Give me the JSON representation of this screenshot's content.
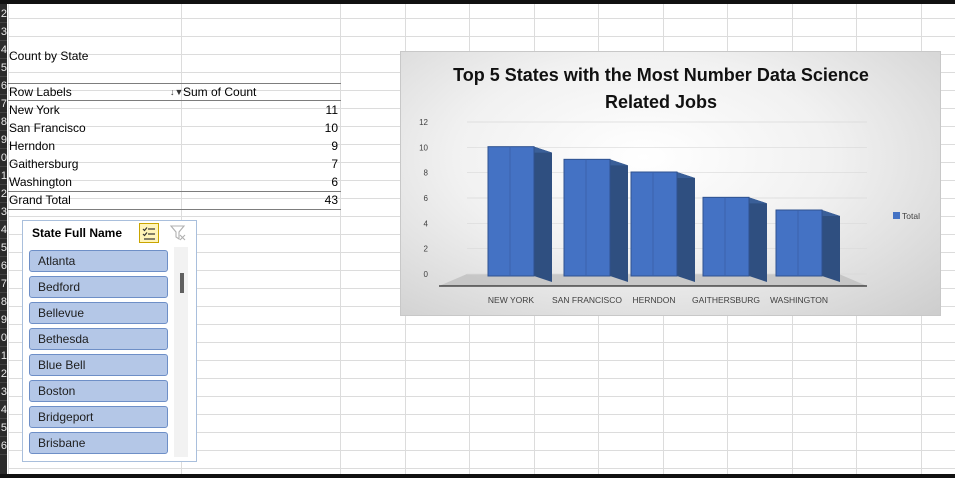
{
  "row_numbers": [
    "2",
    "3",
    "4",
    "5",
    "6",
    "7",
    "8",
    "9",
    "0",
    "1",
    "2",
    "3",
    "4",
    "5",
    "6",
    "7",
    "8",
    "9",
    "0",
    "1",
    "2",
    "3",
    "4",
    "5",
    "6"
  ],
  "pivot": {
    "title": "Count by State",
    "header_row_labels": "Row Labels",
    "header_sum": "Sum of Count",
    "rows": [
      {
        "label": "New York",
        "value": "11"
      },
      {
        "label": "San Francisco",
        "value": "10"
      },
      {
        "label": "Herndon",
        "value": "9"
      },
      {
        "label": "Gaithersburg",
        "value": "7"
      },
      {
        "label": "Washington",
        "value": "6"
      }
    ],
    "grand_total_label": "Grand Total",
    "grand_total_value": "43",
    "filter_icon": "sort-filter-icon"
  },
  "slicer": {
    "title": "State Full Name",
    "multiselect_icon": "multi-select-icon",
    "clear_icon": "clear-filter-icon",
    "items": [
      "Atlanta",
      "Bedford",
      "Bellevue",
      "Bethesda",
      "Blue Bell",
      "Boston",
      "Bridgeport",
      "Brisbane"
    ]
  },
  "chart_data": {
    "type": "bar",
    "title": "Top  5  States with the Most Number Data Science Related Jobs",
    "categories": [
      "NEW YORK",
      "SAN FRANCISCO",
      "HERNDON",
      "GAITHERSBURG",
      "WASHINGTON"
    ],
    "series": [
      {
        "name": "Total",
        "values": [
          11,
          10,
          9,
          7,
          6
        ]
      }
    ],
    "ylim": [
      0,
      12
    ],
    "yticks": [
      "0",
      "2",
      "4",
      "6",
      "8",
      "10",
      "12"
    ],
    "legend": "right",
    "color": "#4472c4"
  }
}
